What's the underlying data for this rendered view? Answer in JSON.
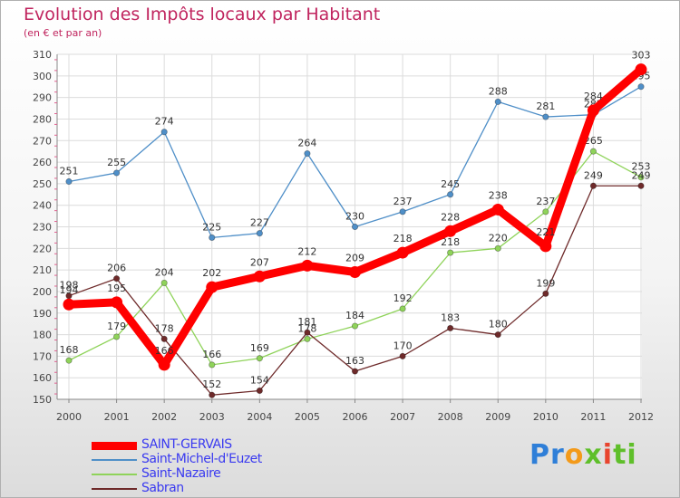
{
  "chart_data": {
    "type": "line",
    "title": "Evolution des Impôts locaux par Habitant",
    "subtitle": "(en € et par an)",
    "xlabel": "",
    "ylabel": "",
    "x": [
      "2000",
      "2001",
      "2002",
      "2003",
      "2004",
      "2005",
      "2006",
      "2007",
      "2008",
      "2009",
      "2010",
      "2011",
      "2012"
    ],
    "ylim": [
      150,
      310
    ],
    "yticks": [
      150,
      160,
      170,
      180,
      190,
      200,
      210,
      220,
      230,
      240,
      250,
      260,
      270,
      280,
      290,
      300,
      310
    ],
    "grid": true,
    "legend_position": "bottom-left",
    "series": [
      {
        "name": "Saint-Michel-d'Euzet",
        "color": "#4f8fc8",
        "values": [
          251,
          255,
          274,
          225,
          227,
          264,
          230,
          237,
          245,
          288,
          281,
          282,
          295
        ],
        "labels": [
          "251",
          "255",
          "274",
          "225",
          "227",
          "264",
          "230",
          "237",
          "245",
          "288",
          "281",
          "282",
          "295"
        ]
      },
      {
        "name": "Saint-Nazaire",
        "color": "#8fd35a",
        "values": [
          168,
          179,
          204,
          166,
          169,
          178,
          184,
          192,
          218,
          220,
          237,
          265,
          253
        ],
        "labels": [
          "168",
          "179",
          "204",
          "166",
          "169",
          "178",
          "184",
          "192",
          "218",
          "220",
          "237",
          "265",
          "253"
        ]
      },
      {
        "name": "Sabran",
        "color": "#6e2a2a",
        "values": [
          198,
          206,
          178,
          152,
          154,
          181,
          163,
          170,
          183,
          180,
          199,
          249,
          249
        ],
        "labels": [
          "198",
          "206",
          "178",
          "152",
          "154",
          "181",
          "163",
          "170",
          "183",
          "180",
          "199",
          "249",
          "249"
        ]
      },
      {
        "name": "SAINT-GERVAIS",
        "color": "#ff0000",
        "values": [
          194,
          195,
          166,
          202,
          207,
          212,
          209,
          218,
          228,
          238,
          221,
          284,
          303
        ],
        "labels": [
          "194",
          "195",
          "166",
          "202",
          "207",
          "212",
          "209",
          "218",
          "228",
          "238",
          "221",
          "284",
          "303"
        ]
      }
    ]
  },
  "legend": {
    "items": [
      {
        "label": "SAINT-GERVAIS",
        "color": "#ff0000"
      },
      {
        "label": "Saint-Michel-d'Euzet",
        "color": "#4f8fc8"
      },
      {
        "label": "Saint-Nazaire",
        "color": "#8fd35a"
      },
      {
        "label": "Sabran",
        "color": "#6e2a2a"
      }
    ]
  },
  "brand": {
    "p1": "Pr",
    "p2": "o",
    "p3": "x",
    "p4": "i",
    "p5": "ti"
  }
}
